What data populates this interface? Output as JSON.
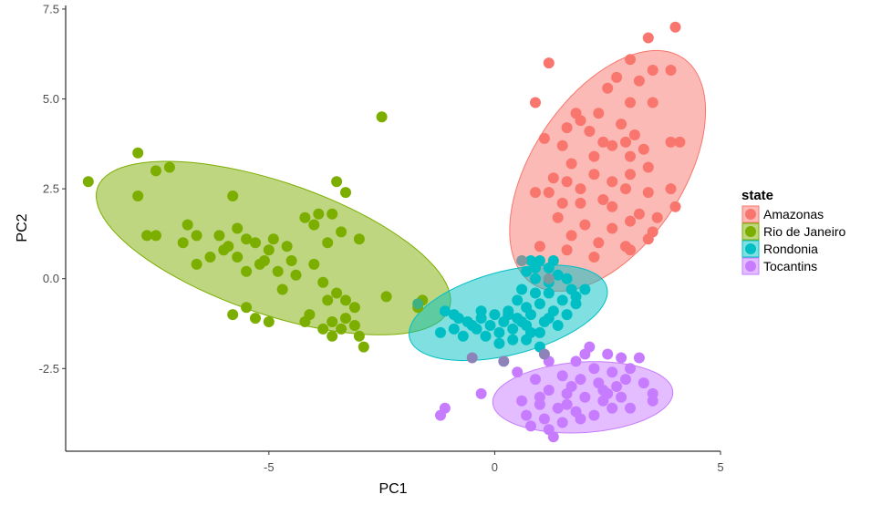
{
  "chart_data": {
    "type": "scatter",
    "title": "",
    "xlabel": "PC1",
    "ylabel": "PC2",
    "xlim": [
      -9.5,
      5
    ],
    "ylim": [
      -4.8,
      7.6
    ],
    "x_ticks": [
      -5,
      0,
      5
    ],
    "x_tick_labels": [
      "-5",
      "0",
      "5"
    ],
    "y_ticks": [
      -2.5,
      0,
      2.5,
      5,
      7.5
    ],
    "y_tick_labels": [
      "-2.5",
      "0.0",
      "2.5",
      "5.0",
      "7.5"
    ],
    "grid": false,
    "legend": {
      "title": "state",
      "position": "right"
    },
    "series": [
      {
        "name": "Amazonas",
        "color": "#F8766D",
        "ellipse": {
          "cx": 2.5,
          "cy": 3.0,
          "rx": 3.58,
          "ry": 1.76,
          "angle_deg": 66
        },
        "points": [
          [
            4.0,
            7.0
          ],
          [
            3.4,
            6.7
          ],
          [
            1.2,
            6.0
          ],
          [
            3.0,
            6.1
          ],
          [
            3.5,
            5.8
          ],
          [
            3.9,
            5.8
          ],
          [
            2.7,
            5.6
          ],
          [
            3.2,
            5.5
          ],
          [
            2.5,
            5.3
          ],
          [
            0.9,
            4.9
          ],
          [
            2.3,
            4.6
          ],
          [
            3.0,
            4.9
          ],
          [
            3.5,
            4.9
          ],
          [
            2.8,
            4.3
          ],
          [
            1.8,
            4.6
          ],
          [
            1.6,
            4.2
          ],
          [
            1.9,
            4.4
          ],
          [
            2.1,
            4.1
          ],
          [
            3.1,
            4.0
          ],
          [
            1.5,
            3.7
          ],
          [
            2.4,
            3.8
          ],
          [
            2.9,
            3.8
          ],
          [
            3.3,
            3.6
          ],
          [
            3.9,
            3.8
          ],
          [
            4.1,
            3.8
          ],
          [
            1.1,
            3.9
          ],
          [
            1.7,
            3.2
          ],
          [
            2.2,
            3.4
          ],
          [
            2.6,
            3.7
          ],
          [
            3.0,
            3.4
          ],
          [
            3.4,
            3.1
          ],
          [
            1.3,
            2.8
          ],
          [
            1.6,
            2.7
          ],
          [
            2.2,
            2.9
          ],
          [
            2.6,
            2.7
          ],
          [
            3.0,
            2.9
          ],
          [
            1.2,
            2.4
          ],
          [
            1.9,
            2.5
          ],
          [
            2.4,
            2.2
          ],
          [
            2.9,
            2.5
          ],
          [
            3.4,
            2.4
          ],
          [
            0.9,
            2.4
          ],
          [
            1.5,
            2.1
          ],
          [
            1.9,
            2.1
          ],
          [
            2.6,
            2.0
          ],
          [
            3.2,
            1.8
          ],
          [
            3.6,
            1.7
          ],
          [
            4.0,
            2.0
          ],
          [
            1.4,
            1.7
          ],
          [
            2.0,
            1.5
          ],
          [
            2.6,
            1.4
          ],
          [
            3.0,
            1.6
          ],
          [
            1.7,
            1.2
          ],
          [
            2.3,
            1.0
          ],
          [
            2.9,
            0.9
          ],
          [
            3.4,
            1.1
          ],
          [
            1.6,
            0.8
          ],
          [
            2.2,
            0.6
          ],
          [
            3.0,
            0.8
          ],
          [
            3.5,
            1.3
          ],
          [
            1.0,
            0.9
          ],
          [
            3.9,
            2.5
          ]
        ]
      },
      {
        "name": "Rio de Janeiro",
        "color": "#7CAE00",
        "ellipse": {
          "cx": -4.9,
          "cy": 0.85,
          "rx": 4.25,
          "ry": 1.78,
          "angle_deg": -25
        },
        "points": [
          [
            -9.0,
            2.7
          ],
          [
            -7.9,
            3.5
          ],
          [
            -7.5,
            3.0
          ],
          [
            -7.2,
            3.1
          ],
          [
            -7.9,
            2.3
          ],
          [
            -7.7,
            1.2
          ],
          [
            -7.5,
            1.2
          ],
          [
            -6.8,
            1.5
          ],
          [
            -6.9,
            1.0
          ],
          [
            -6.6,
            1.2
          ],
          [
            -6.1,
            1.2
          ],
          [
            -5.8,
            2.3
          ],
          [
            -5.7,
            1.4
          ],
          [
            -5.9,
            0.9
          ],
          [
            -5.5,
            1.1
          ],
          [
            -5.3,
            1.0
          ],
          [
            -5.0,
            0.8
          ],
          [
            -4.9,
            1.1
          ],
          [
            -4.6,
            0.9
          ],
          [
            -4.2,
            1.7
          ],
          [
            -4.0,
            1.5
          ],
          [
            -3.9,
            1.8
          ],
          [
            -3.6,
            1.8
          ],
          [
            -3.5,
            2.7
          ],
          [
            -3.3,
            2.4
          ],
          [
            -3.0,
            1.1
          ],
          [
            -3.4,
            1.3
          ],
          [
            -3.7,
            1.0
          ],
          [
            -4.0,
            0.4
          ],
          [
            -4.5,
            0.5
          ],
          [
            -4.8,
            0.2
          ],
          [
            -5.1,
            0.5
          ],
          [
            -5.5,
            0.2
          ],
          [
            -6.0,
            0.8
          ],
          [
            -6.3,
            0.6
          ],
          [
            -6.6,
            0.4
          ],
          [
            -5.7,
            0.6
          ],
          [
            -5.2,
            0.4
          ],
          [
            -4.4,
            0.1
          ],
          [
            -4.7,
            -0.3
          ],
          [
            -3.8,
            -0.1
          ],
          [
            -3.5,
            -0.4
          ],
          [
            -3.3,
            -0.6
          ],
          [
            -3.1,
            -0.8
          ],
          [
            -3.7,
            -0.6
          ],
          [
            -4.1,
            -1.0
          ],
          [
            -3.6,
            -1.2
          ],
          [
            -3.3,
            -1.1
          ],
          [
            -3.1,
            -1.3
          ],
          [
            -3.0,
            -1.6
          ],
          [
            -3.4,
            -1.4
          ],
          [
            -3.8,
            -1.4
          ],
          [
            -4.2,
            -1.2
          ],
          [
            -5.0,
            -1.2
          ],
          [
            -5.3,
            -1.1
          ],
          [
            -5.8,
            -1.0
          ],
          [
            -2.5,
            4.5
          ],
          [
            -2.4,
            -0.5
          ],
          [
            -1.7,
            -0.8
          ],
          [
            -1.6,
            -0.6
          ],
          [
            -2.9,
            -1.9
          ],
          [
            -3.6,
            -1.6
          ],
          [
            -5.5,
            -0.8
          ]
        ]
      },
      {
        "name": "Rondonia",
        "color": "#00BFC4",
        "ellipse": {
          "cx": 0.3,
          "cy": -0.95,
          "rx": 2.3,
          "ry": 1.14,
          "angle_deg": 20
        },
        "points": [
          [
            0.8,
            0.5
          ],
          [
            1.0,
            0.5
          ],
          [
            1.3,
            0.5
          ],
          [
            1.2,
            0.3
          ],
          [
            0.7,
            0.2
          ],
          [
            0.9,
            0.0
          ],
          [
            1.2,
            -0.1
          ],
          [
            1.4,
            0.1
          ],
          [
            1.6,
            0.0
          ],
          [
            1.7,
            -0.3
          ],
          [
            0.6,
            -0.3
          ],
          [
            0.9,
            -0.4
          ],
          [
            1.2,
            -0.4
          ],
          [
            1.5,
            -0.6
          ],
          [
            1.8,
            -0.7
          ],
          [
            0.5,
            -0.6
          ],
          [
            0.7,
            -0.8
          ],
          [
            1.0,
            -0.7
          ],
          [
            1.3,
            -0.9
          ],
          [
            1.6,
            -1.0
          ],
          [
            0.3,
            -0.9
          ],
          [
            0.5,
            -1.1
          ],
          [
            0.8,
            -1.0
          ],
          [
            1.1,
            -1.2
          ],
          [
            1.4,
            -1.3
          ],
          [
            0.0,
            -1.0
          ],
          [
            0.2,
            -1.2
          ],
          [
            0.4,
            -1.4
          ],
          [
            0.7,
            -1.3
          ],
          [
            1.0,
            -1.5
          ],
          [
            -0.3,
            -1.1
          ],
          [
            -0.1,
            -1.3
          ],
          [
            0.1,
            -1.5
          ],
          [
            0.4,
            -1.7
          ],
          [
            0.7,
            -1.7
          ],
          [
            1.0,
            -1.9
          ],
          [
            -0.6,
            -1.2
          ],
          [
            -0.4,
            -1.4
          ],
          [
            -0.2,
            -1.6
          ],
          [
            0.1,
            -1.8
          ],
          [
            -0.9,
            -1.4
          ],
          [
            -0.7,
            -1.6
          ],
          [
            -0.5,
            -1.3
          ],
          [
            -1.1,
            -0.9
          ],
          [
            -0.9,
            -1.0
          ],
          [
            -1.2,
            -1.5
          ],
          [
            -0.8,
            -1.1
          ],
          [
            0.8,
            -1.5
          ],
          [
            0.6,
            -1.2
          ],
          [
            -0.3,
            -0.9
          ],
          [
            1.2,
            -1.1
          ],
          [
            1.8,
            -0.5
          ],
          [
            2.0,
            -0.3
          ],
          [
            0.9,
            0.3
          ],
          [
            0.3,
            -1.0
          ]
        ]
      },
      {
        "name": "Tocantins",
        "color": "#C77CFF",
        "ellipse": {
          "cx": 1.95,
          "cy": -3.3,
          "rx": 2.0,
          "ry": 0.98,
          "angle_deg": 5
        },
        "points": [
          [
            2.1,
            -1.9
          ],
          [
            2.5,
            -2.1
          ],
          [
            2.8,
            -2.2
          ],
          [
            3.2,
            -2.2
          ],
          [
            1.8,
            -2.3
          ],
          [
            2.2,
            -2.5
          ],
          [
            2.6,
            -2.6
          ],
          [
            3.0,
            -2.5
          ],
          [
            1.2,
            -2.3
          ],
          [
            1.5,
            -2.7
          ],
          [
            1.9,
            -2.8
          ],
          [
            2.3,
            -2.9
          ],
          [
            2.7,
            -3.0
          ],
          [
            3.3,
            -2.9
          ],
          [
            3.5,
            -3.2
          ],
          [
            3.5,
            -3.4
          ],
          [
            0.9,
            -2.8
          ],
          [
            1.2,
            -3.1
          ],
          [
            1.6,
            -3.2
          ],
          [
            2.0,
            -3.3
          ],
          [
            2.4,
            -3.4
          ],
          [
            2.8,
            -3.3
          ],
          [
            0.6,
            -3.4
          ],
          [
            1.0,
            -3.5
          ],
          [
            1.4,
            -3.6
          ],
          [
            1.8,
            -3.7
          ],
          [
            2.2,
            -3.8
          ],
          [
            2.6,
            -3.6
          ],
          [
            0.7,
            -3.8
          ],
          [
            1.1,
            -3.9
          ],
          [
            1.5,
            -4.0
          ],
          [
            1.9,
            -3.9
          ],
          [
            0.8,
            -4.1
          ],
          [
            1.2,
            -4.2
          ],
          [
            1.6,
            -3.5
          ],
          [
            2.9,
            -2.8
          ],
          [
            2.4,
            -3.1
          ],
          [
            2.0,
            -2.1
          ],
          [
            1.7,
            -3.0
          ],
          [
            -1.1,
            -3.6
          ],
          [
            -1.2,
            -3.8
          ],
          [
            -0.3,
            -3.2
          ],
          [
            0.5,
            -2.6
          ],
          [
            1.3,
            -4.4
          ],
          [
            2.5,
            -3.2
          ],
          [
            3.0,
            -3.6
          ],
          [
            1.0,
            -3.3
          ]
        ]
      }
    ],
    "overlap_points": [
      {
        "color": "#8E83B8",
        "points": [
          [
            -0.5,
            -2.2
          ],
          [
            0.2,
            -2.3
          ],
          [
            1.1,
            -2.1
          ]
        ]
      },
      {
        "color": "#7B9AA0",
        "points": [
          [
            0.6,
            0.5
          ],
          [
            1.2,
            0.0
          ]
        ]
      },
      {
        "color": "#3FB07E",
        "points": [
          [
            -1.7,
            -0.7
          ]
        ]
      }
    ]
  }
}
